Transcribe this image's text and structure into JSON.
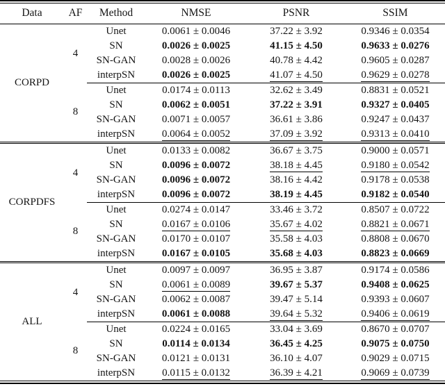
{
  "table": {
    "headers": [
      "Data",
      "AF",
      "Method",
      "NMSE",
      "PSNR",
      "SSIM"
    ],
    "groups": [
      {
        "data": "CORPD",
        "blocks": [
          {
            "af": "4",
            "rows": [
              {
                "method": "Unet",
                "cells": [
                  {
                    "text": "0.0061 ± 0.0046",
                    "style": "normal"
                  },
                  {
                    "text": "37.22 ± 3.92",
                    "style": "normal"
                  },
                  {
                    "text": "0.9346 ± 0.0354",
                    "style": "normal"
                  }
                ]
              },
              {
                "method": "SN",
                "cells": [
                  {
                    "text": "0.0026 ± 0.0025",
                    "style": "bold"
                  },
                  {
                    "text": "41.15 ± 4.50",
                    "style": "bold"
                  },
                  {
                    "text": "0.9633 ± 0.0276",
                    "style": "bold"
                  }
                ]
              },
              {
                "method": "SN-GAN",
                "cells": [
                  {
                    "text": "0.0028 ± 0.0026",
                    "style": "normal"
                  },
                  {
                    "text": "40.78 ± 4.42",
                    "style": "normal"
                  },
                  {
                    "text": "0.9605 ± 0.0287",
                    "style": "normal"
                  }
                ]
              },
              {
                "method": "interpSN",
                "cells": [
                  {
                    "text": "0.0026 ± 0.0025",
                    "style": "bold"
                  },
                  {
                    "text": "41.07 ± 4.50",
                    "style": "underline"
                  },
                  {
                    "text": "0.9629 ± 0.0278",
                    "style": "underline"
                  }
                ]
              }
            ]
          },
          {
            "af": "8",
            "rows": [
              {
                "method": "Unet",
                "cells": [
                  {
                    "text": "0.0174 ± 0.0113",
                    "style": "normal"
                  },
                  {
                    "text": "32.62 ± 3.49",
                    "style": "normal"
                  },
                  {
                    "text": "0.8831 ± 0.0521",
                    "style": "normal"
                  }
                ]
              },
              {
                "method": "SN",
                "cells": [
                  {
                    "text": "0.0062 ± 0.0051",
                    "style": "bold"
                  },
                  {
                    "text": "37.22 ± 3.91",
                    "style": "bold"
                  },
                  {
                    "text": "0.9327 ± 0.0405",
                    "style": "bold"
                  }
                ]
              },
              {
                "method": "SN-GAN",
                "cells": [
                  {
                    "text": "0.0071 ± 0.0057",
                    "style": "normal"
                  },
                  {
                    "text": "36.61 ± 3.86",
                    "style": "normal"
                  },
                  {
                    "text": "0.9247 ± 0.0437",
                    "style": "normal"
                  }
                ]
              },
              {
                "method": "interpSN",
                "cells": [
                  {
                    "text": "0.0064 ± 0.0052",
                    "style": "underline"
                  },
                  {
                    "text": "37.09 ± 3.92",
                    "style": "underline"
                  },
                  {
                    "text": "0.9313 ± 0.0410",
                    "style": "underline"
                  }
                ]
              }
            ]
          }
        ]
      },
      {
        "data": "CORPDFS",
        "blocks": [
          {
            "af": "4",
            "rows": [
              {
                "method": "Unet",
                "cells": [
                  {
                    "text": "0.0133 ± 0.0082",
                    "style": "normal"
                  },
                  {
                    "text": "36.67 ± 3.75",
                    "style": "normal"
                  },
                  {
                    "text": "0.9000 ± 0.0571",
                    "style": "normal"
                  }
                ]
              },
              {
                "method": "SN",
                "cells": [
                  {
                    "text": "0.0096 ± 0.0072",
                    "style": "bold"
                  },
                  {
                    "text": "38.18 ± 4.45",
                    "style": "underline"
                  },
                  {
                    "text": "0.9180 ± 0.0542",
                    "style": "underline"
                  }
                ]
              },
              {
                "method": "SN-GAN",
                "cells": [
                  {
                    "text": "0.0096 ± 0.0072",
                    "style": "bold"
                  },
                  {
                    "text": "38.16 ± 4.42",
                    "style": "normal"
                  },
                  {
                    "text": "0.9178 ± 0.0538",
                    "style": "normal"
                  }
                ]
              },
              {
                "method": "interpSN",
                "cells": [
                  {
                    "text": "0.0096 ± 0.0072",
                    "style": "bold"
                  },
                  {
                    "text": "38.19 ± 4.45",
                    "style": "bold"
                  },
                  {
                    "text": "0.9182 ± 0.0540",
                    "style": "bold"
                  }
                ]
              }
            ]
          },
          {
            "af": "8",
            "rows": [
              {
                "method": "Unet",
                "cells": [
                  {
                    "text": "0.0274 ± 0.0147",
                    "style": "normal"
                  },
                  {
                    "text": "33.46 ± 3.72",
                    "style": "normal"
                  },
                  {
                    "text": "0.8507 ± 0.0722",
                    "style": "normal"
                  }
                ]
              },
              {
                "method": "SN",
                "cells": [
                  {
                    "text": "0.0167 ± 0.0106",
                    "style": "underline"
                  },
                  {
                    "text": "35.67 ± 4.02",
                    "style": "underline"
                  },
                  {
                    "text": "0.8821 ± 0.0671",
                    "style": "underline"
                  }
                ]
              },
              {
                "method": "SN-GAN",
                "cells": [
                  {
                    "text": "0.0170 ± 0.0107",
                    "style": "normal"
                  },
                  {
                    "text": "35.58 ± 4.03",
                    "style": "normal"
                  },
                  {
                    "text": "0.8808 ± 0.0670",
                    "style": "normal"
                  }
                ]
              },
              {
                "method": "interpSN",
                "cells": [
                  {
                    "text": "0.0167 ± 0.0105",
                    "style": "bold"
                  },
                  {
                    "text": "35.68 ± 4.03",
                    "style": "bold"
                  },
                  {
                    "text": "0.8823 ± 0.0669",
                    "style": "bold"
                  }
                ]
              }
            ]
          }
        ]
      },
      {
        "data": "ALL",
        "blocks": [
          {
            "af": "4",
            "rows": [
              {
                "method": "Unet",
                "cells": [
                  {
                    "text": "0.0097 ± 0.0097",
                    "style": "normal"
                  },
                  {
                    "text": "36.95 ± 3.87",
                    "style": "normal"
                  },
                  {
                    "text": "0.9174 ± 0.0586",
                    "style": "normal"
                  }
                ]
              },
              {
                "method": "SN",
                "cells": [
                  {
                    "text": "0.0061 ± 0.0089",
                    "style": "underline"
                  },
                  {
                    "text": "39.67 ± 5.37",
                    "style": "bold"
                  },
                  {
                    "text": "0.9408 ± 0.0625",
                    "style": "bold"
                  }
                ]
              },
              {
                "method": "SN-GAN",
                "cells": [
                  {
                    "text": "0.0062 ± 0.0087",
                    "style": "normal"
                  },
                  {
                    "text": "39.47 ± 5.14",
                    "style": "normal"
                  },
                  {
                    "text": "0.9393 ± 0.0607",
                    "style": "normal"
                  }
                ]
              },
              {
                "method": "interpSN",
                "cells": [
                  {
                    "text": "0.0061 ± 0.0088",
                    "style": "bold"
                  },
                  {
                    "text": "39.64 ± 5.32",
                    "style": "underline"
                  },
                  {
                    "text": "0.9406 ± 0.0619",
                    "style": "underline"
                  }
                ]
              }
            ]
          },
          {
            "af": "8",
            "rows": [
              {
                "method": "Unet",
                "cells": [
                  {
                    "text": "0.0224 ± 0.0165",
                    "style": "normal"
                  },
                  {
                    "text": "33.04 ± 3.69",
                    "style": "normal"
                  },
                  {
                    "text": "0.8670 ± 0.0707",
                    "style": "normal"
                  }
                ]
              },
              {
                "method": "SN",
                "cells": [
                  {
                    "text": "0.0114 ± 0.0134",
                    "style": "bold"
                  },
                  {
                    "text": "36.45 ± 4.25",
                    "style": "bold"
                  },
                  {
                    "text": "0.9075 ± 0.0750",
                    "style": "bold"
                  }
                ]
              },
              {
                "method": "SN-GAN",
                "cells": [
                  {
                    "text": "0.0121 ± 0.0131",
                    "style": "normal"
                  },
                  {
                    "text": "36.10 ± 4.07",
                    "style": "normal"
                  },
                  {
                    "text": "0.9029 ± 0.0715",
                    "style": "normal"
                  }
                ]
              },
              {
                "method": "interpSN",
                "cells": [
                  {
                    "text": "0.0115 ± 0.0132",
                    "style": "underline"
                  },
                  {
                    "text": "36.39 ± 4.21",
                    "style": "underline"
                  },
                  {
                    "text": "0.9069 ± 0.0739",
                    "style": "underline"
                  }
                ]
              }
            ]
          }
        ]
      }
    ]
  }
}
